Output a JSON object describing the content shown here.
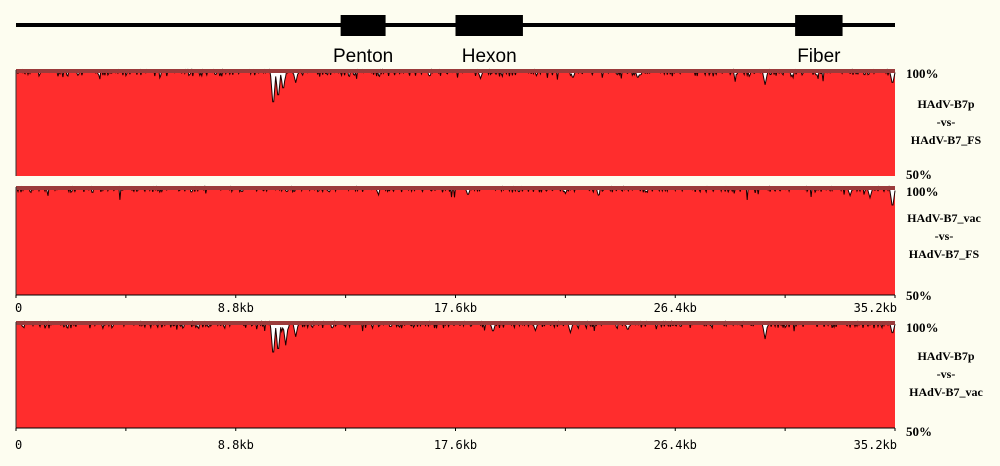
{
  "genome_map": {
    "genes": [
      {
        "name": "Penton",
        "start": 13.0,
        "end": 14.8
      },
      {
        "name": "Hexon",
        "start": 17.6,
        "end": 20.3
      },
      {
        "name": "Fiber",
        "start": 31.2,
        "end": 33.1
      }
    ],
    "length_kb": 35.2
  },
  "chart_data": [
    {
      "type": "area",
      "title": "",
      "series_label": [
        "HAdV-B7p",
        "-vs-",
        "HAdV-B7_FS"
      ],
      "y_top_label": "100%",
      "y_bottom_label": "50%",
      "ylim": [
        50,
        100
      ],
      "xlim": [
        0,
        35.2
      ],
      "x_ticks": [],
      "dips": [
        {
          "x": 10.3,
          "y": 82
        },
        {
          "x": 10.5,
          "y": 86
        },
        {
          "x": 10.7,
          "y": 90
        },
        {
          "x": 11.2,
          "y": 94
        },
        {
          "x": 18.6,
          "y": 96
        },
        {
          "x": 22.3,
          "y": 96
        },
        {
          "x": 24.9,
          "y": 96
        },
        {
          "x": 30.0,
          "y": 93
        },
        {
          "x": 35.1,
          "y": 93
        }
      ],
      "noise_depth": 3,
      "color": "#ff2d2d"
    },
    {
      "type": "area",
      "title": "",
      "series_label": [
        "HAdV-B7_vac",
        "-vs-",
        "HAdV-B7_FS"
      ],
      "y_top_label": "100%",
      "y_bottom_label": "50%",
      "ylim": [
        50,
        100
      ],
      "xlim": [
        0,
        35.2
      ],
      "x_ticks": [
        "0",
        "8.8kb",
        "17.6kb",
        "26.4kb",
        "35.2kb"
      ],
      "dips": [
        {
          "x": 18.1,
          "y": 96
        },
        {
          "x": 14.5,
          "y": 97
        },
        {
          "x": 22.0,
          "y": 97
        },
        {
          "x": 33.4,
          "y": 96
        },
        {
          "x": 34.2,
          "y": 95
        },
        {
          "x": 35.1,
          "y": 90
        }
      ],
      "noise_depth": 2.5,
      "color": "#ff2d2d"
    },
    {
      "type": "area",
      "title": "",
      "series_label": [
        "HAdV-B7p",
        "-vs-",
        "HAdV-B7_vac"
      ],
      "y_top_label": "100%",
      "y_bottom_label": "50%",
      "ylim": [
        50,
        100
      ],
      "xlim": [
        0,
        35.2
      ],
      "x_ticks": [
        "0",
        "8.8kb",
        "17.6kb",
        "26.4kb",
        "35.2kb"
      ],
      "dips": [
        {
          "x": 10.3,
          "y": 83
        },
        {
          "x": 10.5,
          "y": 85
        },
        {
          "x": 10.8,
          "y": 89
        },
        {
          "x": 11.2,
          "y": 93
        },
        {
          "x": 19.1,
          "y": 95
        },
        {
          "x": 20.8,
          "y": 96
        },
        {
          "x": 22.2,
          "y": 95
        },
        {
          "x": 24.5,
          "y": 96
        },
        {
          "x": 30.0,
          "y": 92
        },
        {
          "x": 35.1,
          "y": 94
        }
      ],
      "noise_depth": 3,
      "color": "#ff2d2d"
    }
  ]
}
